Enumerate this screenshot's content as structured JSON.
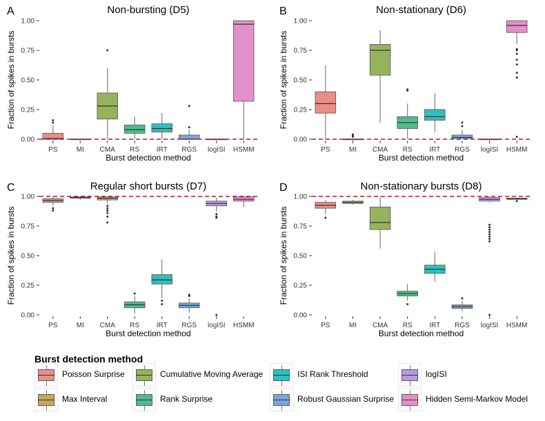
{
  "colors": {
    "PS": "#e88e89",
    "MI": "#c9a45c",
    "CMA": "#96b35c",
    "RS": "#4dbd8d",
    "IRT": "#2fbfbf",
    "RGS": "#76a8dc",
    "logISI": "#b79be0",
    "HSMM": "#e28fca",
    "reference_line": "#b2182b"
  },
  "legend": {
    "title": "Burst detection method",
    "items": [
      {
        "code": "PS",
        "label": "Poisson Surprise"
      },
      {
        "code": "CMA",
        "label": "Cumulative Moving Average"
      },
      {
        "code": "IRT",
        "label": "ISI Rank Threshold"
      },
      {
        "code": "logISI",
        "label": "logISI"
      },
      {
        "code": "MI",
        "label": "Max Interval"
      },
      {
        "code": "RS",
        "label": "Rank Surprise"
      },
      {
        "code": "RGS",
        "label": "Robust Gaussian Surprise"
      },
      {
        "code": "HSMM",
        "label": "Hidden Semi-Markov Model"
      }
    ]
  },
  "chart_data": [
    {
      "type": "box",
      "panel_label": "A",
      "title": "Non-bursting (D5)",
      "xlabel": "Burst detection method",
      "ylabel": "Fraction of spikes in bursts",
      "ylim": [
        0,
        1
      ],
      "yticks": [
        "0.00",
        "0.25",
        "0.50",
        "0.75",
        "1.00"
      ],
      "reference_line": 0,
      "categories": [
        "PS",
        "MI",
        "CMA",
        "RS",
        "IRT",
        "RGS",
        "logISI",
        "HSMM"
      ],
      "boxes": [
        {
          "q1": 0.0,
          "median": 0.005,
          "q3": 0.05,
          "lo": 0.0,
          "hi": 0.12,
          "outliers": [
            0.14,
            0.16
          ]
        },
        {
          "q1": 0.0,
          "median": 0.0,
          "q3": 0.0,
          "lo": 0.0,
          "hi": 0.0,
          "outliers": []
        },
        {
          "q1": 0.17,
          "median": 0.28,
          "q3": 0.39,
          "lo": 0.0,
          "hi": 0.6,
          "outliers": [
            0.75
          ]
        },
        {
          "q1": 0.05,
          "median": 0.08,
          "q3": 0.12,
          "lo": 0.0,
          "hi": 0.19,
          "outliers": []
        },
        {
          "q1": 0.06,
          "median": 0.09,
          "q3": 0.13,
          "lo": 0.0,
          "hi": 0.22,
          "outliers": []
        },
        {
          "q1": 0.0,
          "median": 0.0,
          "q3": 0.035,
          "lo": 0.0,
          "hi": 0.08,
          "outliers": [
            0.1,
            0.28
          ]
        },
        {
          "q1": 0.0,
          "median": 0.0,
          "q3": 0.0,
          "lo": 0.0,
          "hi": 0.0,
          "outliers": []
        },
        {
          "q1": 0.32,
          "median": 0.97,
          "q3": 1.0,
          "lo": 0.0,
          "hi": 1.0,
          "outliers": []
        }
      ]
    },
    {
      "type": "box",
      "panel_label": "B",
      "title": "Non-stationary (D6)",
      "xlabel": "Burst detection method",
      "ylabel": "Fraction of spikes in bursts",
      "ylim": [
        0,
        1
      ],
      "yticks": [
        "0.00",
        "0.25",
        "0.50",
        "0.75",
        "1.00"
      ],
      "reference_line": 0,
      "categories": [
        "PS",
        "MI",
        "CMA",
        "RS",
        "IRT",
        "RGS",
        "logISI",
        "HSMM"
      ],
      "boxes": [
        {
          "q1": 0.22,
          "median": 0.3,
          "q3": 0.4,
          "lo": 0.0,
          "hi": 0.62,
          "outliers": []
        },
        {
          "q1": 0.0,
          "median": 0.0,
          "q3": 0.0,
          "lo": 0.0,
          "hi": 0.0,
          "outliers": [
            0.02,
            0.03,
            0.04
          ]
        },
        {
          "q1": 0.54,
          "median": 0.75,
          "q3": 0.8,
          "lo": 0.14,
          "hi": 0.92,
          "outliers": []
        },
        {
          "q1": 0.09,
          "median": 0.14,
          "q3": 0.19,
          "lo": 0.0,
          "hi": 0.3,
          "outliers": [
            0.41,
            0.42
          ]
        },
        {
          "q1": 0.16,
          "median": 0.19,
          "q3": 0.25,
          "lo": 0.06,
          "hi": 0.39,
          "outliers": []
        },
        {
          "q1": 0.005,
          "median": 0.015,
          "q3": 0.035,
          "lo": 0.0,
          "hi": 0.08,
          "outliers": [
            0.11,
            0.14
          ]
        },
        {
          "q1": 0.0,
          "median": 0.0,
          "q3": 0.0,
          "lo": 0.0,
          "hi": 0.0,
          "outliers": []
        },
        {
          "q1": 0.9,
          "median": 0.96,
          "q3": 1.0,
          "lo": 0.8,
          "hi": 1.0,
          "outliers": [
            0.76,
            0.75,
            0.72,
            0.67,
            0.63,
            0.56,
            0.52,
            0.02
          ]
        }
      ]
    },
    {
      "type": "box",
      "panel_label": "C",
      "title": "Regular short bursts (D7)",
      "xlabel": "Burst detection method",
      "ylabel": "Fraction of spikes in bursts",
      "ylim": [
        0,
        1
      ],
      "yticks": [
        "0.00",
        "0.25",
        "0.50",
        "0.75",
        "1.00"
      ],
      "reference_line": 1,
      "categories": [
        "PS",
        "MI",
        "CMA",
        "RS",
        "IRT",
        "RGS",
        "logISI",
        "HSMM"
      ],
      "boxes": [
        {
          "q1": 0.95,
          "median": 0.965,
          "q3": 0.98,
          "lo": 0.92,
          "hi": 1.0,
          "outliers": [
            0.9,
            0.88
          ]
        },
        {
          "q1": 0.985,
          "median": 0.99,
          "q3": 0.995,
          "lo": 0.97,
          "hi": 1.0,
          "outliers": []
        },
        {
          "q1": 0.97,
          "median": 0.985,
          "q3": 0.995,
          "lo": 0.94,
          "hi": 1.0,
          "outliers": [
            0.92,
            0.9,
            0.88,
            0.86,
            0.83,
            0.78
          ]
        },
        {
          "q1": 0.06,
          "median": 0.085,
          "q3": 0.11,
          "lo": 0.01,
          "hi": 0.16,
          "outliers": [
            0.18
          ]
        },
        {
          "q1": 0.26,
          "median": 0.295,
          "q3": 0.34,
          "lo": 0.14,
          "hi": 0.47,
          "outliers": [
            0.12,
            0.09
          ]
        },
        {
          "q1": 0.06,
          "median": 0.08,
          "q3": 0.1,
          "lo": 0.02,
          "hi": 0.14,
          "outliers": [
            0.16,
            0.17
          ]
        },
        {
          "q1": 0.92,
          "median": 0.94,
          "q3": 0.96,
          "lo": 0.87,
          "hi": 0.99,
          "outliers": [
            0.85,
            0.83,
            0.82,
            0.0
          ]
        },
        {
          "q1": 0.96,
          "median": 0.975,
          "q3": 0.995,
          "lo": 0.91,
          "hi": 1.0,
          "outliers": []
        }
      ]
    },
    {
      "type": "box",
      "panel_label": "D",
      "title": "Non-stationary bursts (D8)",
      "xlabel": "Burst detection method",
      "ylabel": "Fraction of spikes in bursts",
      "ylim": [
        0,
        1
      ],
      "yticks": [
        "0.00",
        "0.25",
        "0.50",
        "0.75",
        "1.00"
      ],
      "reference_line": 1,
      "categories": [
        "PS",
        "MI",
        "CMA",
        "RS",
        "IRT",
        "RGS",
        "logISI",
        "HSMM"
      ],
      "boxes": [
        {
          "q1": 0.9,
          "median": 0.925,
          "q3": 0.95,
          "lo": 0.85,
          "hi": 0.97,
          "outliers": [
            0.82
          ]
        },
        {
          "q1": 0.94,
          "median": 0.95,
          "q3": 0.96,
          "lo": 0.93,
          "hi": 0.97,
          "outliers": []
        },
        {
          "q1": 0.72,
          "median": 0.78,
          "q3": 0.91,
          "lo": 0.56,
          "hi": 1.0,
          "outliers": []
        },
        {
          "q1": 0.16,
          "median": 0.18,
          "q3": 0.2,
          "lo": 0.12,
          "hi": 0.26,
          "outliers": [
            0.09
          ]
        },
        {
          "q1": 0.35,
          "median": 0.385,
          "q3": 0.42,
          "lo": 0.28,
          "hi": 0.53,
          "outliers": []
        },
        {
          "q1": 0.055,
          "median": 0.07,
          "q3": 0.085,
          "lo": 0.03,
          "hi": 0.12,
          "outliers": [
            0.14
          ]
        },
        {
          "q1": 0.96,
          "median": 0.975,
          "q3": 0.99,
          "lo": 0.95,
          "hi": 1.0,
          "outliers": [
            0.76,
            0.74,
            0.72,
            0.7,
            0.68,
            0.66,
            0.64,
            0.62,
            0.0
          ]
        },
        {
          "q1": 0.975,
          "median": 0.98,
          "q3": 0.985,
          "lo": 0.97,
          "hi": 0.99,
          "outliers": [
            0.96
          ]
        }
      ]
    }
  ]
}
